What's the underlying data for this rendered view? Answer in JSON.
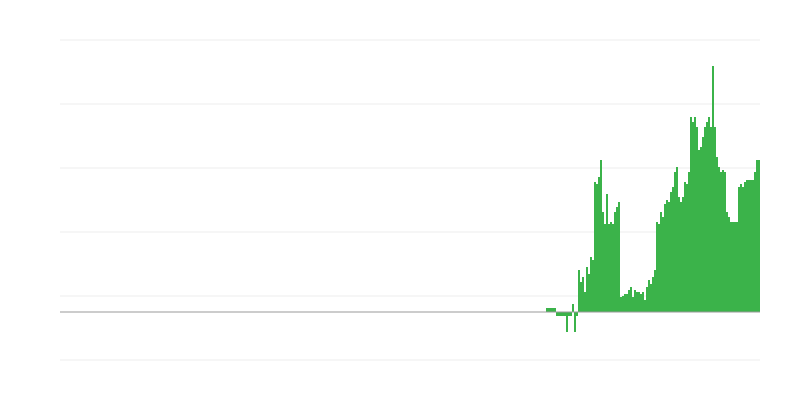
{
  "chart_data": {
    "type": "bar",
    "color": "#3bb34a",
    "grid": true,
    "xlim": [
      0,
      350
    ],
    "ylim": [
      -48,
      272
    ],
    "yticks": [
      -48,
      16,
      80,
      144,
      208,
      272
    ],
    "x": [
      243,
      244,
      245,
      246,
      247,
      248,
      249,
      250,
      251,
      252,
      253,
      254,
      255,
      256,
      257,
      258,
      259,
      260,
      261,
      262,
      263,
      264,
      265,
      266,
      267,
      268,
      269,
      270,
      271,
      272,
      273,
      274,
      275,
      276,
      277,
      278,
      279,
      280,
      281,
      282,
      283,
      284,
      285,
      286,
      287,
      288,
      289,
      290,
      291,
      292,
      293,
      294,
      295,
      296,
      297,
      298,
      299,
      300,
      301,
      302,
      303,
      304,
      305,
      306,
      307,
      308,
      309,
      310,
      311,
      312,
      313,
      314,
      315,
      316,
      317,
      318,
      319,
      320,
      321,
      322,
      323,
      324,
      325,
      326,
      327,
      328,
      329,
      330,
      331,
      332,
      333,
      334,
      335,
      336,
      337,
      338,
      339,
      340,
      341,
      342,
      343,
      344,
      345,
      346,
      347,
      348,
      349
    ],
    "values": [
      4,
      4,
      4,
      4,
      4,
      -4,
      -4,
      -4,
      -4,
      -4,
      -20,
      -4,
      -4,
      8,
      -20,
      -4,
      42,
      30,
      35,
      20,
      45,
      38,
      55,
      52,
      130,
      128,
      135,
      152,
      100,
      88,
      118,
      88,
      90,
      88,
      100,
      105,
      110,
      15,
      16,
      18,
      18,
      22,
      25,
      15,
      22,
      20,
      20,
      18,
      20,
      12,
      25,
      32,
      28,
      35,
      42,
      90,
      88,
      100,
      95,
      108,
      112,
      110,
      120,
      125,
      140,
      145,
      115,
      110,
      115,
      130,
      128,
      140,
      195,
      190,
      195,
      185,
      162,
      165,
      175,
      185,
      190,
      195,
      185,
      246,
      185,
      155,
      145,
      140,
      142,
      140,
      100,
      95,
      90,
      90,
      90,
      90,
      125,
      128,
      125,
      130,
      132,
      132,
      132,
      132,
      140,
      152,
      152
    ]
  }
}
